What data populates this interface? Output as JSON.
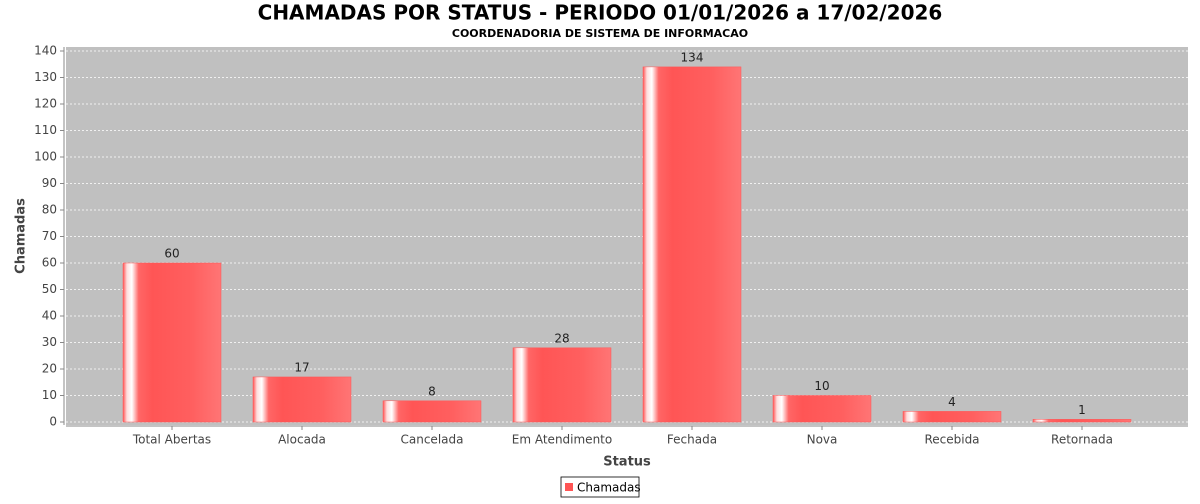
{
  "chart_data": {
    "type": "bar",
    "title": "CHAMADAS POR STATUS - PERIODO 01/01/2026 a 17/02/2026",
    "subtitle": "COORDENADORIA DE SISTEMA DE INFORMACAO",
    "x_label": "Status",
    "y_label": "Chamadas",
    "categories": [
      "Total Abertas",
      "Alocada",
      "Cancelada",
      "Em Atendimento",
      "Fechada",
      "Nova",
      "Recebida",
      "Retornada"
    ],
    "series": [
      {
        "name": "Chamadas",
        "color": "#ff5555",
        "values": [
          60,
          17,
          8,
          28,
          134,
          10,
          4,
          1
        ]
      }
    ],
    "ylim": [
      0,
      140
    ],
    "yticks": [
      0,
      10,
      20,
      30,
      40,
      50,
      60,
      70,
      80,
      90,
      100,
      110,
      120,
      130,
      140
    ],
    "grid": true,
    "legend": "bottom"
  }
}
